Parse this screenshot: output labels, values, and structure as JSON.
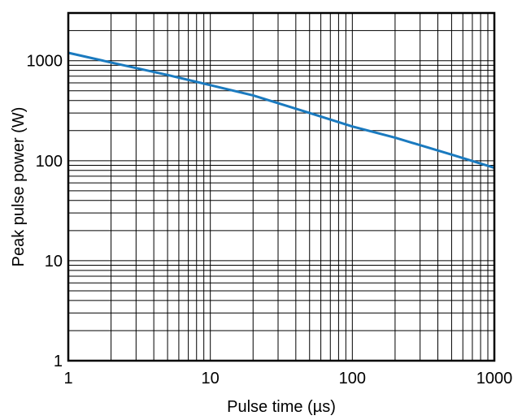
{
  "chart_data": {
    "type": "line",
    "xlabel": "Pulse time (µs)",
    "ylabel": "Peak pulse power (W)",
    "x_scale": "log",
    "y_scale": "log",
    "xlim": [
      1,
      1000
    ],
    "ylim": [
      1,
      3000
    ],
    "x_ticks": [
      {
        "value": 1,
        "label": "1"
      },
      {
        "value": 10,
        "label": "10"
      },
      {
        "value": 100,
        "label": "100"
      },
      {
        "value": 1000,
        "label": "1000"
      }
    ],
    "y_ticks": [
      {
        "value": 1,
        "label": "1"
      },
      {
        "value": 10,
        "label": "10"
      },
      {
        "value": 100,
        "label": "100"
      },
      {
        "value": 1000,
        "label": "1000"
      }
    ],
    "grid": true,
    "series": [
      {
        "color": "#1a7abf",
        "x": [
          1,
          2,
          5,
          10,
          20,
          50,
          100,
          200,
          500,
          1000
        ],
        "y": [
          1200,
          960,
          720,
          570,
          450,
          300,
          220,
          170,
          115,
          85
        ]
      }
    ]
  }
}
